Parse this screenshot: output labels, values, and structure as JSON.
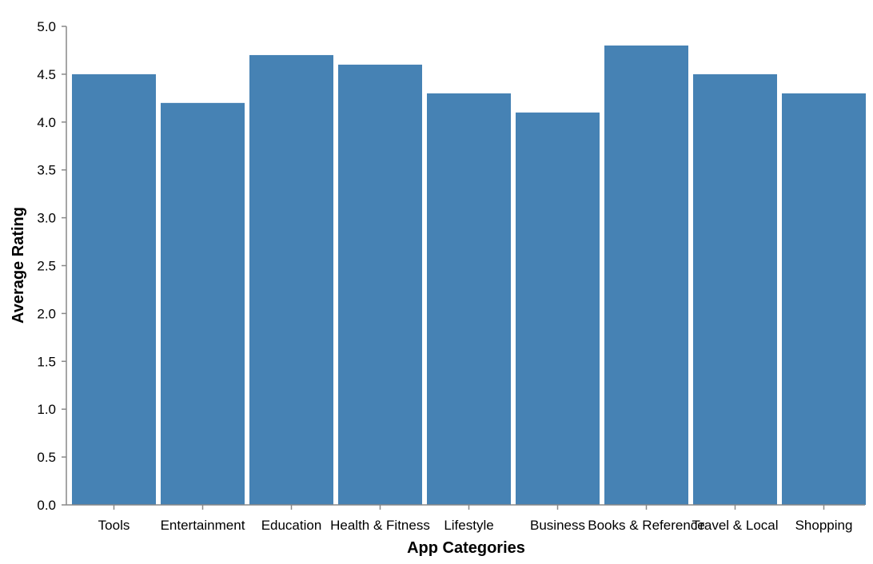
{
  "chart_data": {
    "type": "bar",
    "categories": [
      "Tools",
      "Entertainment",
      "Education",
      "Health & Fitness",
      "Lifestyle",
      "Business",
      "Books & Reference",
      "Travel & Local",
      "Shopping"
    ],
    "values": [
      4.5,
      4.2,
      4.7,
      4.6,
      4.3,
      4.1,
      4.8,
      4.5,
      4.3
    ],
    "xlabel": "App Categories",
    "ylabel": "Average Rating",
    "ylim": [
      0,
      5
    ],
    "yticks": [
      "0.0",
      "0.5",
      "1.0",
      "1.5",
      "2.0",
      "2.5",
      "3.0",
      "3.5",
      "4.0",
      "4.5",
      "5.0"
    ],
    "bar_color": "#4682b4",
    "grid": false
  }
}
